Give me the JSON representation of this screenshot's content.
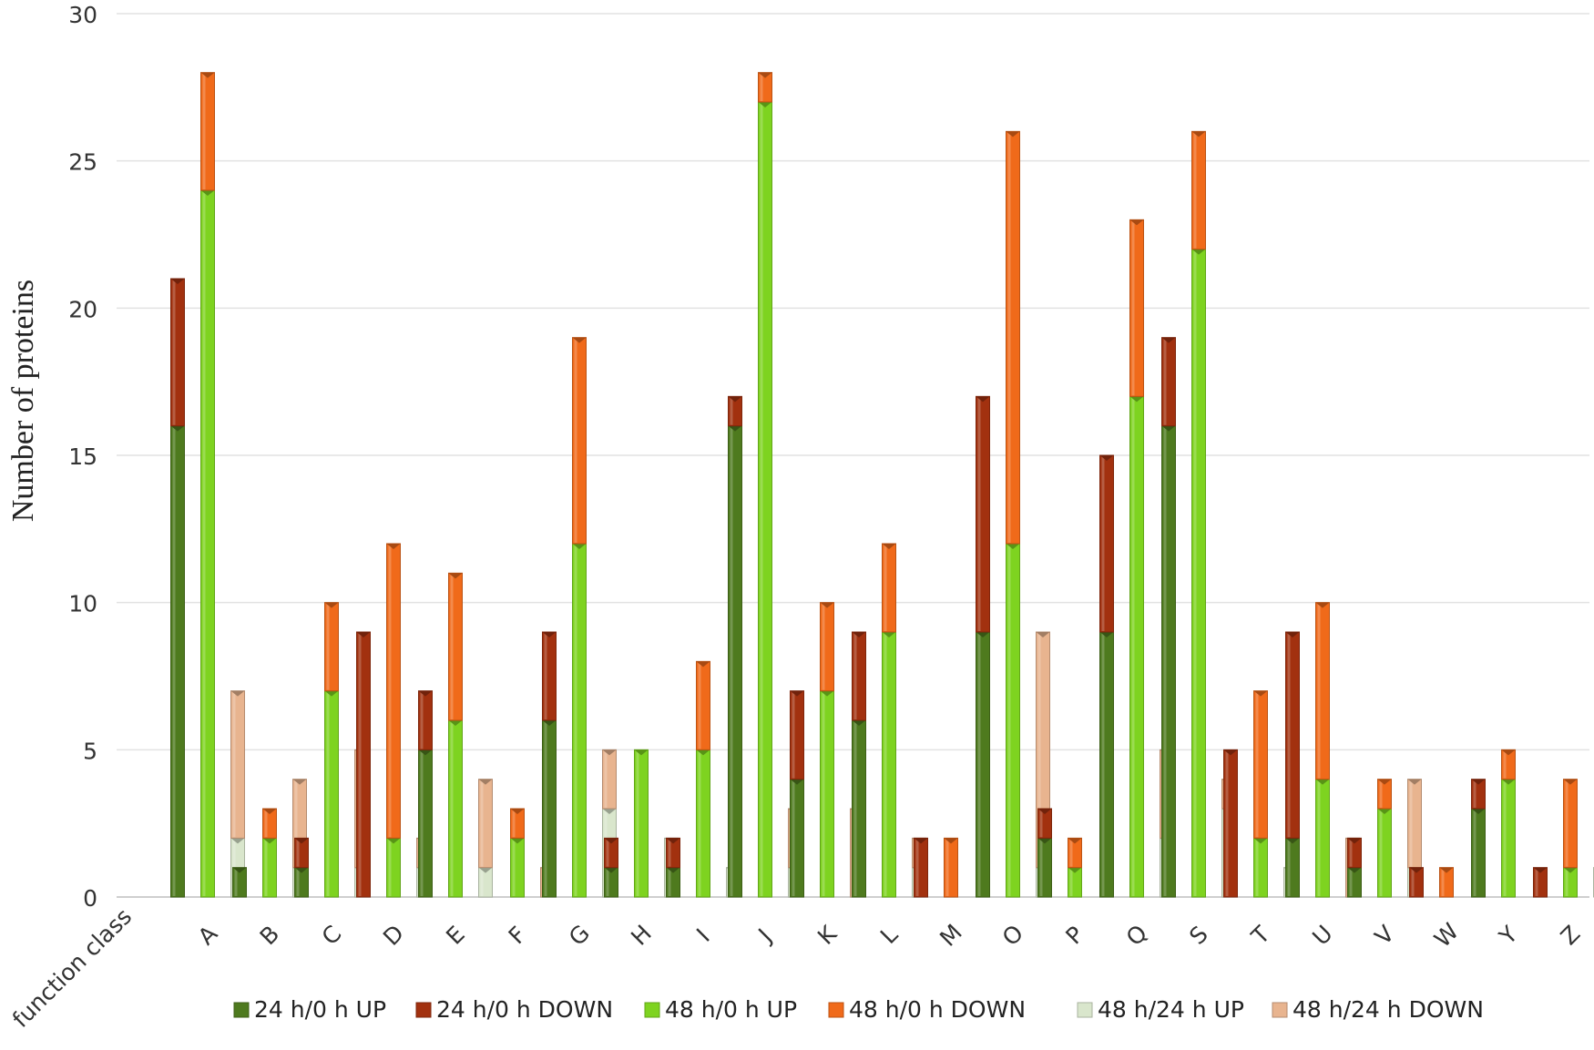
{
  "chart_data": {
    "type": "bar",
    "stacked": true,
    "title": "",
    "xlabel": "function class",
    "ylabel": "Number of proteins",
    "ylim": [
      0,
      30
    ],
    "yticks": [
      "0",
      "5",
      "10",
      "15",
      "20",
      "25",
      "30"
    ],
    "grid": true,
    "legend_position": "bottom",
    "categories": [
      "A",
      "B",
      "C",
      "D",
      "E",
      "F",
      "G",
      "H",
      "I",
      "J",
      "K",
      "L",
      "M",
      "O",
      "P",
      "Q",
      "S",
      "T",
      "U",
      "V",
      "W",
      "Y",
      "Z"
    ],
    "groups": [
      {
        "name": "24 h/0 h",
        "series": [
          {
            "name": "24 h/0 h UP",
            "color": "#4e7a1e",
            "values": [
              16,
              1,
              1,
              0,
              5,
              0,
              6,
              1,
              1,
              16,
              4,
              6,
              0,
              9,
              2,
              9,
              16,
              0,
              2,
              1,
              0,
              3,
              0
            ]
          },
          {
            "name": "24 h/0 h DOWN",
            "color": "#a2310f",
            "values": [
              5,
              0,
              1,
              9,
              2,
              0,
              3,
              1,
              1,
              1,
              3,
              3,
              2,
              8,
              1,
              6,
              3,
              5,
              7,
              1,
              1,
              1,
              1
            ]
          }
        ]
      },
      {
        "name": "48 h/0 h",
        "series": [
          {
            "name": "48 h/0 h UP",
            "color": "#7ed320",
            "values": [
              24,
              2,
              7,
              2,
              6,
              2,
              12,
              5,
              5,
              27,
              7,
              9,
              0,
              12,
              1,
              17,
              22,
              2,
              4,
              3,
              0,
              4,
              1
            ]
          },
          {
            "name": "48 h/0 h DOWN",
            "color": "#f06a1a",
            "values": [
              4,
              1,
              3,
              10,
              5,
              1,
              7,
              0,
              3,
              1,
              3,
              3,
              2,
              14,
              1,
              6,
              4,
              5,
              6,
              1,
              1,
              1,
              3
            ]
          }
        ]
      },
      {
        "name": "48 h/24 h",
        "series": [
          {
            "name": "48 h/24 h UP",
            "color": "#d9e6cc",
            "values": [
              2,
              1,
              1,
              1,
              1,
              0,
              3,
              2,
              1,
              1,
              0,
              1,
              0,
              1,
              0,
              2,
              3,
              1,
              0,
              1,
              0,
              0,
              1
            ]
          },
          {
            "name": "48 h/24 h DOWN",
            "color": "#e8b48f",
            "values": [
              5,
              3,
              4,
              1,
              3,
              1,
              2,
              0,
              0,
              2,
              3,
              1,
              0,
              8,
              0,
              3,
              1,
              0,
              2,
              3,
              0,
              0,
              0
            ]
          }
        ]
      }
    ]
  }
}
